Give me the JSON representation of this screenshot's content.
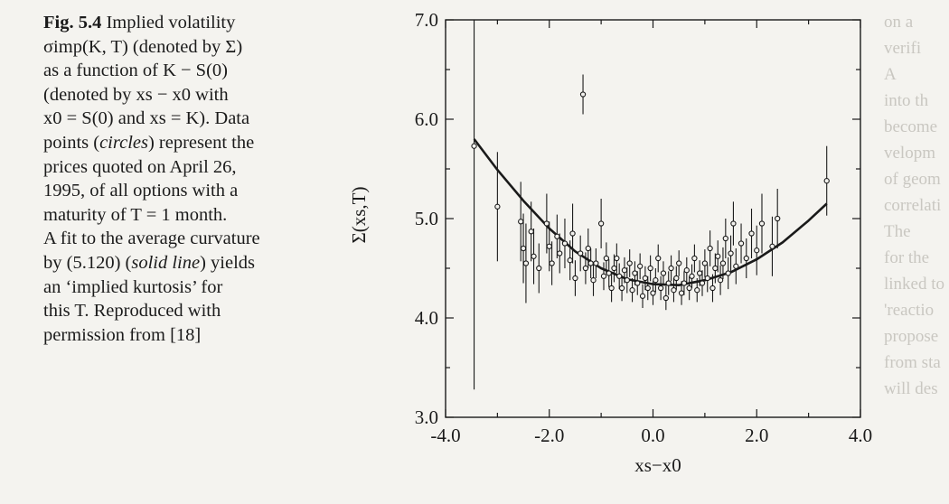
{
  "caption": {
    "fig_label": "Fig. 5.4",
    "line1": "Implied volatility",
    "line2": "σimp(K, T) (denoted by Σ)",
    "line3": "as a function of K − S(0)",
    "line4": "(denoted by xs − x0 with",
    "line5": "x0 = S(0) and xs = K). Data",
    "line6a": "points (",
    "line6b": "circles",
    "line6c": ") represent the",
    "line7": "prices quoted on April 26,",
    "line8": "1995, of all options with a",
    "line9": "maturity of T = 1 month.",
    "line10": "A fit to the average curvature",
    "line11a": "by (5.120) (",
    "line11b": "solid line",
    "line11c": ") yields",
    "line12": "an ‘implied kurtosis’ for",
    "line13": "this T. Reproduced with",
    "line14": "permission from [18]"
  },
  "chart_data": {
    "type": "scatter",
    "title": "",
    "xlabel": "xs−x0",
    "ylabel": "Σ(xs,T)",
    "xlim": [
      -4.0,
      4.0
    ],
    "ylim": [
      3.0,
      7.0
    ],
    "x_ticks": [
      "-4.0",
      "-2.0",
      "0.0",
      "2.0",
      "4.0"
    ],
    "y_ticks": [
      "3.0",
      "4.0",
      "5.0",
      "6.0",
      "7.0"
    ],
    "grid": false,
    "legend": "none",
    "fit_curve": {
      "x": [
        -3.45,
        -3.0,
        -2.5,
        -2.0,
        -1.5,
        -1.0,
        -0.5,
        0.0,
        0.5,
        1.0,
        1.5,
        2.0,
        2.5,
        3.0,
        3.35
      ],
      "y": [
        5.8,
        5.49,
        5.18,
        4.9,
        4.67,
        4.5,
        4.39,
        4.34,
        4.33,
        4.38,
        4.46,
        4.59,
        4.76,
        4.98,
        5.15
      ]
    },
    "points": [
      {
        "x": -3.45,
        "y": 5.73,
        "err": 2.45
      },
      {
        "x": -3.0,
        "y": 5.12,
        "err": 0.55
      },
      {
        "x": -2.55,
        "y": 4.97,
        "err": 0.4
      },
      {
        "x": -2.5,
        "y": 4.7,
        "err": 0.35
      },
      {
        "x": -2.45,
        "y": 4.55,
        "err": 0.4
      },
      {
        "x": -2.35,
        "y": 4.87,
        "err": 0.3
      },
      {
        "x": -2.3,
        "y": 4.62,
        "err": 0.28
      },
      {
        "x": -2.2,
        "y": 4.5,
        "err": 0.25
      },
      {
        "x": -2.05,
        "y": 4.95,
        "err": 0.3
      },
      {
        "x": -2.0,
        "y": 4.72,
        "err": 0.25
      },
      {
        "x": -1.95,
        "y": 4.55,
        "err": 0.22
      },
      {
        "x": -1.85,
        "y": 4.82,
        "err": 0.22
      },
      {
        "x": -1.8,
        "y": 4.65,
        "err": 0.2
      },
      {
        "x": -1.7,
        "y": 4.75,
        "err": 0.25
      },
      {
        "x": -1.6,
        "y": 4.58,
        "err": 0.2
      },
      {
        "x": -1.55,
        "y": 4.85,
        "err": 0.3
      },
      {
        "x": -1.5,
        "y": 4.4,
        "err": 0.18
      },
      {
        "x": -1.4,
        "y": 4.65,
        "err": 0.18
      },
      {
        "x": -1.35,
        "y": 6.25,
        "err": 0.2
      },
      {
        "x": -1.3,
        "y": 4.5,
        "err": 0.16
      },
      {
        "x": -1.25,
        "y": 4.7,
        "err": 0.2
      },
      {
        "x": -1.2,
        "y": 4.55,
        "err": 0.15
      },
      {
        "x": -1.15,
        "y": 4.38,
        "err": 0.16
      },
      {
        "x": -1.1,
        "y": 4.55,
        "err": 0.15
      },
      {
        "x": -1.0,
        "y": 4.95,
        "err": 0.25
      },
      {
        "x": -0.95,
        "y": 4.42,
        "err": 0.14
      },
      {
        "x": -0.9,
        "y": 4.6,
        "err": 0.16
      },
      {
        "x": -0.85,
        "y": 4.45,
        "err": 0.14
      },
      {
        "x": -0.8,
        "y": 4.3,
        "err": 0.14
      },
      {
        "x": -0.75,
        "y": 4.5,
        "err": 0.14
      },
      {
        "x": -0.7,
        "y": 4.6,
        "err": 0.15
      },
      {
        "x": -0.65,
        "y": 4.42,
        "err": 0.13
      },
      {
        "x": -0.6,
        "y": 4.3,
        "err": 0.13
      },
      {
        "x": -0.55,
        "y": 4.48,
        "err": 0.13
      },
      {
        "x": -0.5,
        "y": 4.38,
        "err": 0.13
      },
      {
        "x": -0.45,
        "y": 4.55,
        "err": 0.14
      },
      {
        "x": -0.4,
        "y": 4.28,
        "err": 0.12
      },
      {
        "x": -0.35,
        "y": 4.45,
        "err": 0.12
      },
      {
        "x": -0.3,
        "y": 4.35,
        "err": 0.12
      },
      {
        "x": -0.25,
        "y": 4.52,
        "err": 0.13
      },
      {
        "x": -0.2,
        "y": 4.22,
        "err": 0.12
      },
      {
        "x": -0.15,
        "y": 4.4,
        "err": 0.12
      },
      {
        "x": -0.1,
        "y": 4.3,
        "err": 0.12
      },
      {
        "x": -0.05,
        "y": 4.5,
        "err": 0.13
      },
      {
        "x": 0.0,
        "y": 4.25,
        "err": 0.12
      },
      {
        "x": 0.05,
        "y": 4.38,
        "err": 0.12
      },
      {
        "x": 0.1,
        "y": 4.6,
        "err": 0.14
      },
      {
        "x": 0.15,
        "y": 4.3,
        "err": 0.12
      },
      {
        "x": 0.2,
        "y": 4.45,
        "err": 0.12
      },
      {
        "x": 0.25,
        "y": 4.2,
        "err": 0.12
      },
      {
        "x": 0.3,
        "y": 4.35,
        "err": 0.12
      },
      {
        "x": 0.35,
        "y": 4.5,
        "err": 0.13
      },
      {
        "x": 0.4,
        "y": 4.28,
        "err": 0.12
      },
      {
        "x": 0.45,
        "y": 4.4,
        "err": 0.12
      },
      {
        "x": 0.5,
        "y": 4.55,
        "err": 0.13
      },
      {
        "x": 0.55,
        "y": 4.25,
        "err": 0.12
      },
      {
        "x": 0.6,
        "y": 4.35,
        "err": 0.12
      },
      {
        "x": 0.65,
        "y": 4.48,
        "err": 0.13
      },
      {
        "x": 0.7,
        "y": 4.3,
        "err": 0.12
      },
      {
        "x": 0.75,
        "y": 4.42,
        "err": 0.12
      },
      {
        "x": 0.8,
        "y": 4.6,
        "err": 0.14
      },
      {
        "x": 0.85,
        "y": 4.28,
        "err": 0.12
      },
      {
        "x": 0.9,
        "y": 4.45,
        "err": 0.13
      },
      {
        "x": 0.95,
        "y": 4.35,
        "err": 0.13
      },
      {
        "x": 1.0,
        "y": 4.55,
        "err": 0.14
      },
      {
        "x": 1.05,
        "y": 4.4,
        "err": 0.14
      },
      {
        "x": 1.1,
        "y": 4.7,
        "err": 0.18
      },
      {
        "x": 1.15,
        "y": 4.3,
        "err": 0.14
      },
      {
        "x": 1.2,
        "y": 4.5,
        "err": 0.15
      },
      {
        "x": 1.25,
        "y": 4.62,
        "err": 0.16
      },
      {
        "x": 1.3,
        "y": 4.38,
        "err": 0.15
      },
      {
        "x": 1.35,
        "y": 4.55,
        "err": 0.16
      },
      {
        "x": 1.4,
        "y": 4.8,
        "err": 0.2
      },
      {
        "x": 1.45,
        "y": 4.45,
        "err": 0.16
      },
      {
        "x": 1.5,
        "y": 4.65,
        "err": 0.18
      },
      {
        "x": 1.55,
        "y": 4.95,
        "err": 0.22
      },
      {
        "x": 1.6,
        "y": 4.52,
        "err": 0.18
      },
      {
        "x": 1.7,
        "y": 4.75,
        "err": 0.2
      },
      {
        "x": 1.8,
        "y": 4.6,
        "err": 0.2
      },
      {
        "x": 1.9,
        "y": 4.85,
        "err": 0.25
      },
      {
        "x": 2.0,
        "y": 4.68,
        "err": 0.25
      },
      {
        "x": 2.1,
        "y": 4.95,
        "err": 0.3
      },
      {
        "x": 2.3,
        "y": 4.72,
        "err": 0.3
      },
      {
        "x": 2.4,
        "y": 5.0,
        "err": 0.3
      },
      {
        "x": 3.35,
        "y": 5.38,
        "err": 0.35
      }
    ]
  },
  "ghost_text": [
    "on a",
    "verifi",
    "A",
    "into th",
    "become",
    "velopm",
    "of geom",
    "correlati",
    "The",
    "for the",
    "linked to",
    "'reactio",
    "propose",
    "from sta",
    "will des"
  ]
}
